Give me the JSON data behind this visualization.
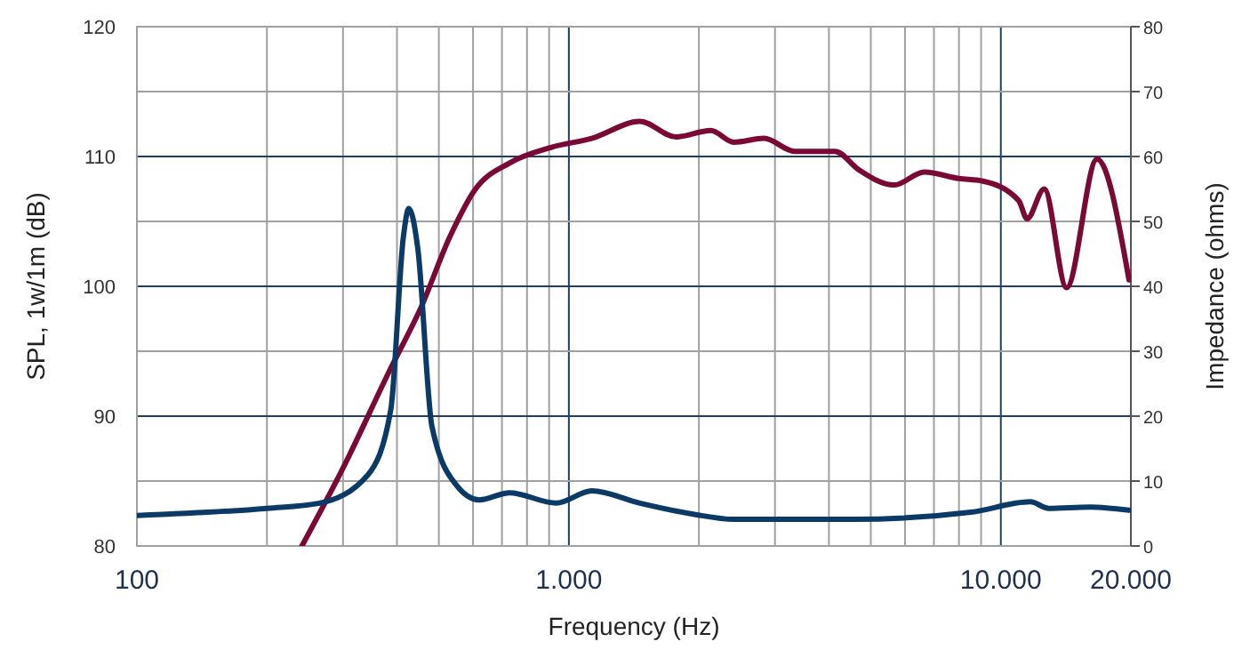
{
  "chart_data": {
    "type": "line",
    "xlabel": "Frequency (Hz)",
    "ylabel": "SPL, 1w/1m (dB)",
    "y2label": "Impedance (ohms)",
    "log": "x",
    "grid": true,
    "line_style": "solid",
    "xlim": [
      100,
      20000
    ],
    "xticks": [
      100,
      {
        "value": 200,
        "label": null
      },
      {
        "value": 300,
        "label": null
      },
      {
        "value": 400,
        "label": null
      },
      {
        "value": 500,
        "label": null
      },
      {
        "value": 600,
        "label": null
      },
      {
        "value": 700,
        "label": null
      },
      {
        "value": 800,
        "label": null
      },
      {
        "value": 900,
        "label": null
      },
      {
        "value": 1000,
        "label": "1.000"
      },
      {
        "value": 2000,
        "label": null
      },
      {
        "value": 3000,
        "label": null
      },
      {
        "value": 4000,
        "label": null
      },
      {
        "value": 5000,
        "label": null
      },
      {
        "value": 6000,
        "label": null
      },
      {
        "value": 7000,
        "label": null
      },
      {
        "value": 8000,
        "label": null
      },
      {
        "value": 9000,
        "label": null
      },
      {
        "value": 10000,
        "label": "10.000"
      },
      {
        "value": 20000,
        "label": "20.000"
      }
    ],
    "ylim": [
      80,
      120
    ],
    "yticks": [
      80,
      {
        "value": 85,
        "label": null
      },
      90,
      {
        "value": 95,
        "label": null
      },
      100,
      {
        "value": 105,
        "label": null
      },
      110,
      {
        "value": 115,
        "label": null
      },
      120
    ],
    "y2lim": [
      0,
      80
    ],
    "y2ticks": [
      0,
      10,
      20,
      30,
      40,
      50,
      60,
      70,
      80
    ],
    "series": [
      {
        "color": "#7a0a35",
        "x": [
          241,
          300,
          387,
          455,
          530,
          605,
          729,
          909,
          1130,
          1460,
          1770,
          2130,
          2410,
          2830,
          3330,
          4130,
          4680,
          5660,
          6650,
          8010,
          9090,
          11000,
          11500,
          12600,
          14200,
          16700,
          19800
        ],
        "values": [
          80,
          86,
          93.7,
          98.4,
          103.8,
          107.4,
          109.5,
          110.7,
          111.4,
          112.7,
          111.5,
          112,
          111.1,
          111.4,
          110.4,
          110.4,
          109,
          107.8,
          108.8,
          108.3,
          108.1,
          106.6,
          105.2,
          107.5,
          99.9,
          109.8,
          100.5
        ]
      },
      {
        "color": "#0c3a66",
        "axis": "y2",
        "x": [
          100,
          200,
          265,
          343,
          387,
          414,
          426,
          447,
          482,
          550,
          620,
          729,
          935,
          1130,
          1460,
          1940,
          2410,
          4540,
          8530,
          11700,
          12900,
          16100,
          19800
        ],
        "values": [
          4.7,
          5.8,
          6.6,
          11,
          21,
          47.7,
          52,
          45.8,
          18.4,
          9.3,
          7.1,
          8.2,
          6.6,
          8.5,
          6.6,
          4.9,
          4.1,
          4.1,
          5.2,
          6.8,
          5.8,
          6,
          5.5
        ]
      }
    ]
  }
}
